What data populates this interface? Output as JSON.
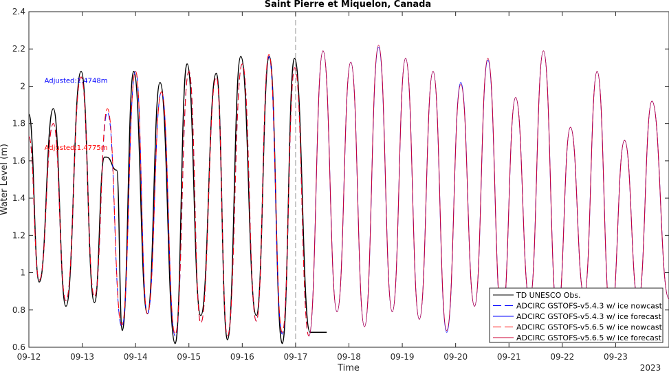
{
  "chart_data": {
    "type": "line",
    "title": "Saint Pierre et Miquelon, Canada",
    "xlabel": "Time",
    "ylabel": "Water Level (m)",
    "year_label": "2023",
    "xlim": [
      "09-12",
      "09-24"
    ],
    "ylim": [
      0.6,
      2.4
    ],
    "xticks": [
      "09-12",
      "09-13",
      "09-14",
      "09-15",
      "09-16",
      "09-17",
      "09-18",
      "09-19",
      "09-20",
      "09-21",
      "09-22",
      "09-23"
    ],
    "yticks": [
      "0.6",
      "0.8",
      "1",
      "1.2",
      "1.4",
      "1.6",
      "1.8",
      "2",
      "2.2",
      "2.4"
    ],
    "forecast_start": "09-17",
    "annotations": [
      {
        "text": "Adjusted:1.4748m",
        "x": "09-12 07:00",
        "y": 2.03,
        "color": "#0000ff"
      },
      {
        "text": "Adjusted:1.4775m",
        "x": "09-12 07:00",
        "y": 1.67,
        "color": "#ff0000"
      }
    ],
    "legend_position": "bottom-right",
    "series": [
      {
        "name": "TD UNESCO Obs.",
        "color": "#000000",
        "dash": "solid",
        "x": [
          "09-12 00:00",
          "09-12 04:40",
          "09-12 11:00",
          "09-12 16:40",
          "09-12 23:30",
          "09-13 05:30",
          "09-13 10:00",
          "09-13 11:00",
          "09-13 15:30",
          "09-13 18:00",
          "09-13 23:10",
          "09-14 05:20",
          "09-14 11:00",
          "09-14 17:50",
          "09-14 23:10",
          "09-15 05:20",
          "09-15 12:20",
          "09-15 17:20",
          "09-15 23:20",
          "09-16 06:20",
          "09-16 12:10",
          "09-16 18:00",
          "09-16 23:30",
          "09-17 06:30",
          "09-17 12:20",
          "09-17 14:00"
        ],
        "y": [
          1.85,
          0.95,
          1.88,
          0.82,
          2.08,
          0.84,
          1.62,
          1.62,
          1.55,
          0.69,
          2.08,
          0.78,
          2.02,
          0.62,
          2.12,
          0.77,
          2.07,
          0.64,
          2.16,
          0.77,
          2.16,
          0.62,
          2.15,
          0.68,
          0.68,
          0.68
        ]
      },
      {
        "name": "ADCIRC GSTOFS-v5.4.3 w/ ice nowcast",
        "color": "#0000ff",
        "dash": "dashed",
        "x": [
          "09-12 00:00",
          "09-12 04:40",
          "09-12 11:00",
          "09-12 16:40",
          "09-12 23:30",
          "09-13 05:30",
          "09-13 11:20",
          "09-13 17:50",
          "09-14 00:00",
          "09-14 05:20",
          "09-14 11:40",
          "09-14 17:50",
          "09-15 00:00",
          "09-15 05:20",
          "09-15 12:20",
          "09-15 17:20",
          "09-16 00:00",
          "09-16 06:20",
          "09-16 12:00",
          "09-16 18:00",
          "09-16 23:40",
          "09-17 06:00"
        ],
        "y": [
          1.73,
          0.96,
          1.8,
          0.85,
          2.05,
          0.87,
          1.86,
          0.71,
          2.08,
          0.78,
          1.97,
          0.66,
          2.08,
          0.73,
          2.05,
          0.66,
          2.12,
          0.74,
          2.16,
          0.67,
          2.1,
          0.66
        ]
      },
      {
        "name": "ADCIRC GSTOFS-v5.4.3 w/ ice forecast",
        "color": "#0000ff",
        "dash": "solid",
        "x": [
          "09-17 06:00",
          "09-17 12:20",
          "09-17 18:40",
          "09-18 00:50",
          "09-18 07:00",
          "09-18 13:20",
          "09-18 19:30",
          "09-19 01:30",
          "09-19 07:40",
          "09-19 13:50",
          "09-19 20:00",
          "09-20 02:20",
          "09-20 08:30",
          "09-20 14:30",
          "09-20 20:50",
          "09-21 03:00",
          "09-21 09:20",
          "09-21 15:30",
          "09-21 21:50",
          "09-22 03:40",
          "09-22 09:50",
          "09-22 15:40",
          "09-22 21:50",
          "09-23 04:00",
          "09-23 10:10",
          "09-23 16:20",
          "09-23 23:59"
        ],
        "y": [
          0.66,
          2.19,
          0.79,
          2.13,
          0.71,
          2.21,
          0.79,
          2.15,
          0.75,
          2.08,
          0.68,
          2.02,
          0.82,
          2.14,
          0.75,
          1.94,
          0.85,
          2.19,
          0.78,
          1.78,
          0.88,
          2.08,
          0.76,
          1.71,
          0.85,
          1.92,
          0.86
        ]
      },
      {
        "name": "ADCIRC GSTOFS-v5.6.5 w/ ice nowcast",
        "color": "#ff0000",
        "dash": "dashed",
        "x": [
          "09-12 00:00",
          "09-12 04:40",
          "09-12 11:00",
          "09-12 16:40",
          "09-12 23:30",
          "09-13 05:30",
          "09-13 11:20",
          "09-13 17:50",
          "09-14 00:00",
          "09-14 05:20",
          "09-14 11:40",
          "09-14 17:50",
          "09-15 00:00",
          "09-15 05:20",
          "09-15 12:20",
          "09-15 17:20",
          "09-16 00:00",
          "09-16 06:20",
          "09-16 12:00",
          "09-16 18:00",
          "09-16 23:40",
          "09-17 06:00"
        ],
        "y": [
          1.73,
          0.96,
          1.8,
          0.85,
          2.05,
          0.87,
          1.88,
          0.72,
          2.08,
          0.78,
          1.97,
          0.67,
          2.08,
          0.73,
          2.05,
          0.66,
          2.12,
          0.74,
          2.17,
          0.68,
          2.1,
          0.66
        ]
      },
      {
        "name": "ADCIRC GSTOFS-v5.6.5 w/ ice forecast",
        "color": "#cc0033",
        "dash": "solid",
        "x": [
          "09-17 06:00",
          "09-17 12:20",
          "09-17 18:40",
          "09-18 00:50",
          "09-18 07:00",
          "09-18 13:20",
          "09-18 19:30",
          "09-19 01:30",
          "09-19 07:40",
          "09-19 13:50",
          "09-19 20:00",
          "09-20 02:20",
          "09-20 08:30",
          "09-20 14:30",
          "09-20 20:50",
          "09-21 03:00",
          "09-21 09:20",
          "09-21 15:30",
          "09-21 21:50",
          "09-22 03:40",
          "09-22 09:50",
          "09-22 15:40",
          "09-22 21:50",
          "09-23 04:00",
          "09-23 10:10",
          "09-23 16:20",
          "09-23 23:59"
        ],
        "y": [
          0.66,
          2.19,
          0.79,
          2.13,
          0.71,
          2.22,
          0.79,
          2.15,
          0.75,
          2.08,
          0.69,
          2.01,
          0.82,
          2.15,
          0.75,
          1.94,
          0.85,
          2.19,
          0.78,
          1.78,
          0.88,
          2.08,
          0.76,
          1.71,
          0.85,
          1.92,
          0.86
        ]
      }
    ]
  }
}
